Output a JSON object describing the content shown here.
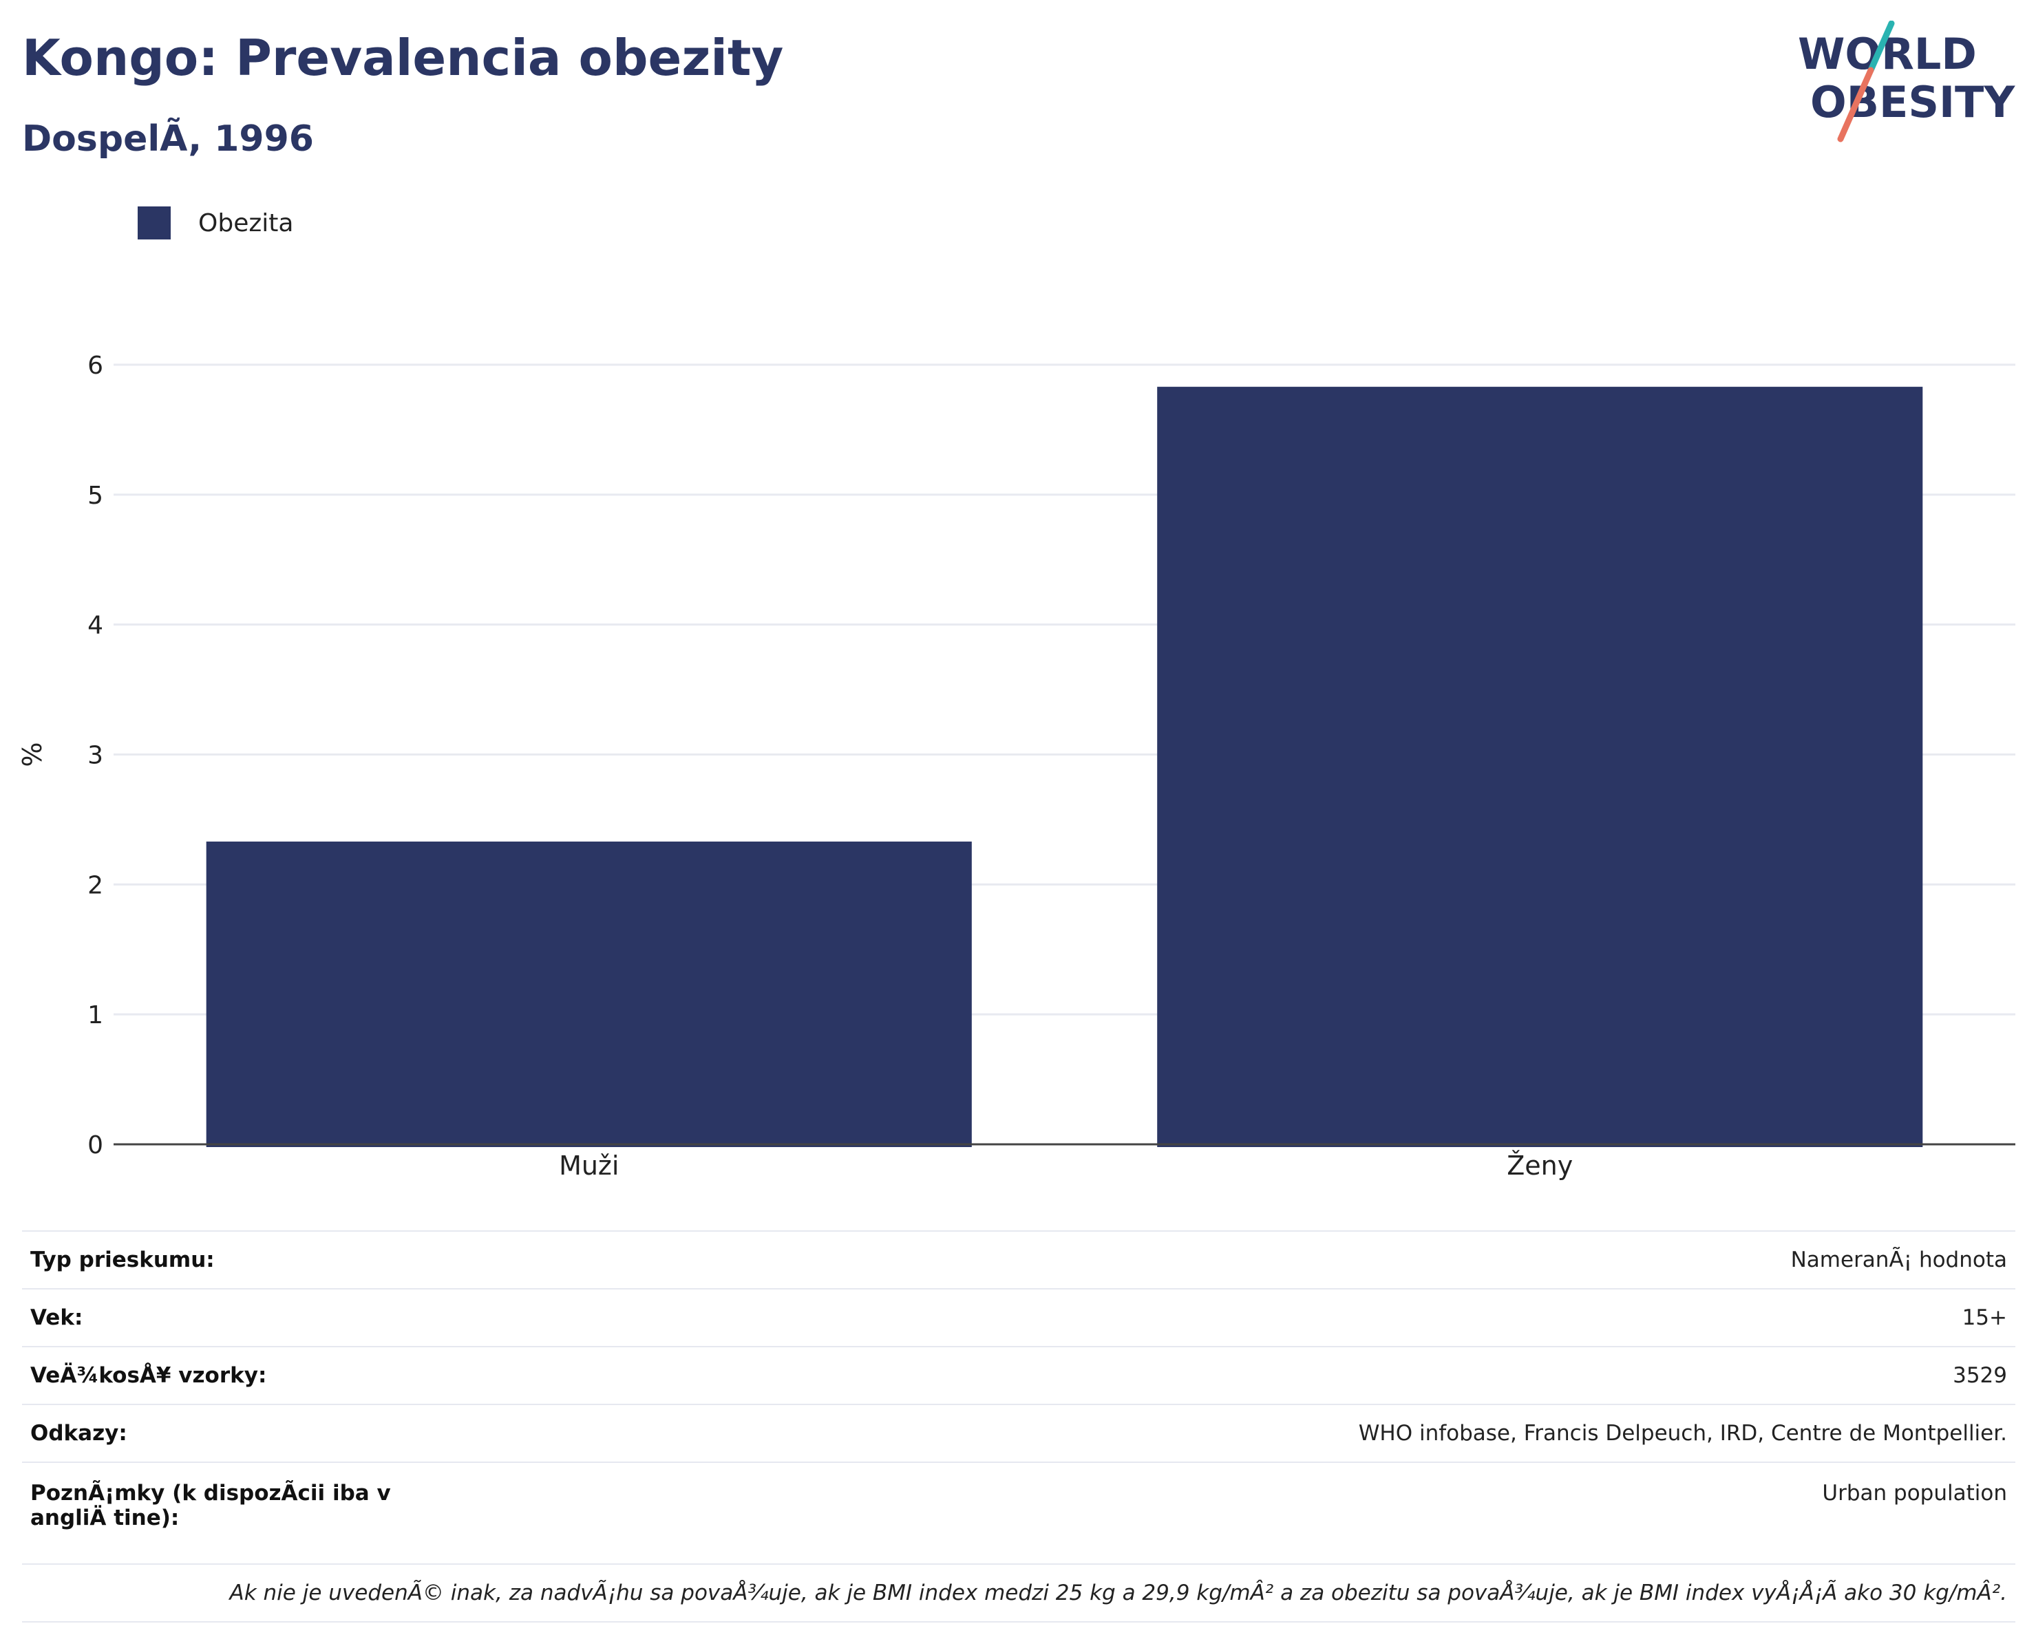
{
  "header": {
    "title": "Kongo: Prevalencia obezity",
    "subtitle": "DospelÃ, 1996"
  },
  "logo": {
    "line1": "WORLD",
    "line2": "OBESITY"
  },
  "legend": {
    "label": "Obezita",
    "color": "#2b3664"
  },
  "chart_data": {
    "type": "bar",
    "categories": [
      "Muži",
      "Ženy"
    ],
    "series": [
      {
        "name": "Obezita",
        "values": [
          2.33,
          5.83
        ],
        "color": "#2b3664"
      }
    ],
    "ylabel": "%",
    "xlabel": "",
    "ylim": [
      0,
      6
    ],
    "yticks": [
      0,
      1,
      2,
      3,
      4,
      5,
      6
    ],
    "grid": true,
    "legend_position": "top-left"
  },
  "info": {
    "rows": [
      {
        "label": "Typ prieskumu:",
        "value": "NameranÃ¡ hodnota"
      },
      {
        "label": "Vek:",
        "value": "15+"
      },
      {
        "label": "VeÄ¾kosÅ¥ vzorky:",
        "value": "3529"
      },
      {
        "label": "Odkazy:",
        "value": "WHO infobase, Francis Delpeuch, IRD, Centre de Montpellier."
      },
      {
        "label": "PoznÃ¡mky (k dispozÃcii iba v angliÄ tine):",
        "value": "Urban population"
      }
    ],
    "footnote": "Ak nie je uvedenÃ© inak, za nadvÃ¡hu sa povaÅ¾uje, ak je BMI index medzi 25 kg a 29,9 kg/mÂ² a za obezitu sa povaÅ¾uje, ak je BMI index vyÅ¡Å¡Ã ako 30 kg/mÂ²."
  }
}
